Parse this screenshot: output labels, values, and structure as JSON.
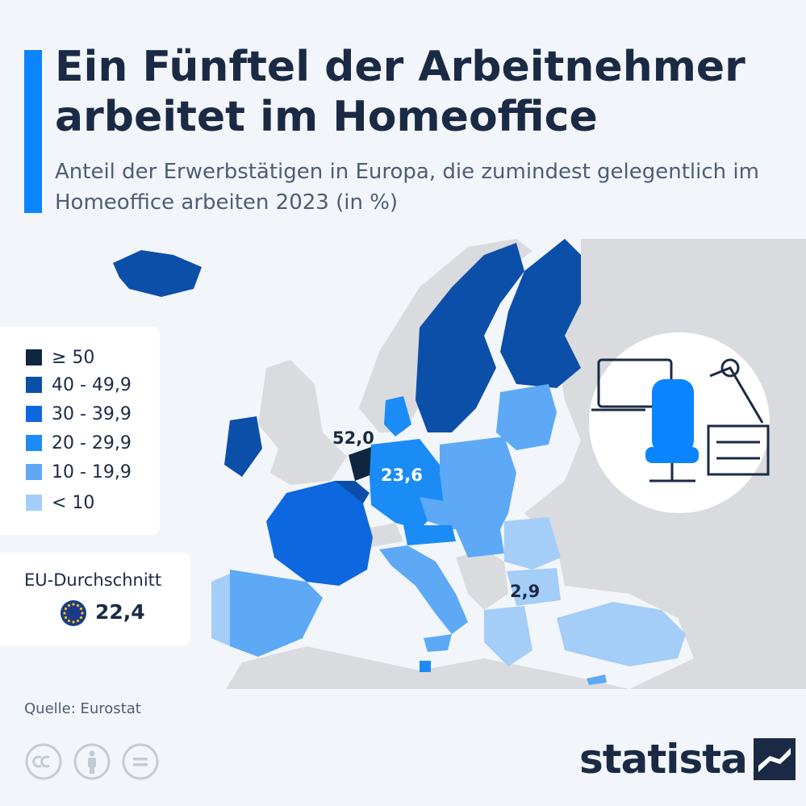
{
  "header": {
    "title": "Ein Fünftel der Arbeitnehmer arbeitet im Homeoffice",
    "subtitle": "Anteil der Erwerbstätigen in Europa, die zumindest gelegentlich im Homeoffice arbeiten 2023 (in %)"
  },
  "legend": {
    "items": [
      {
        "label": "≥ 50",
        "color": "#0f2540"
      },
      {
        "label": "40 - 49,9",
        "color": "#0b4fa8"
      },
      {
        "label": "30 - 39,9",
        "color": "#0d68e0"
      },
      {
        "label": "20 - 29,9",
        "color": "#1b8cf5"
      },
      {
        "label": "10 - 19,9",
        "color": "#5ea9f5"
      },
      {
        "label": "< 10",
        "color": "#a4cdf8"
      }
    ]
  },
  "eu_average": {
    "label": "EU-Durchschnitt",
    "value": "22,4"
  },
  "map_labels": {
    "netherlands": "52,0",
    "germany": "23,6",
    "bulgaria": "2,9"
  },
  "footer": {
    "source": "Quelle: Eurostat",
    "brand": "statista"
  },
  "colors": {
    "accent": "#0a84ff",
    "non_eu_land": "#d9dbdf",
    "background": "#f2f5f9"
  },
  "icons": [
    "cc-icon",
    "by-icon",
    "nd-icon",
    "statista-logo-icon",
    "eu-flag-icon",
    "home-office-desk-icon"
  ]
}
